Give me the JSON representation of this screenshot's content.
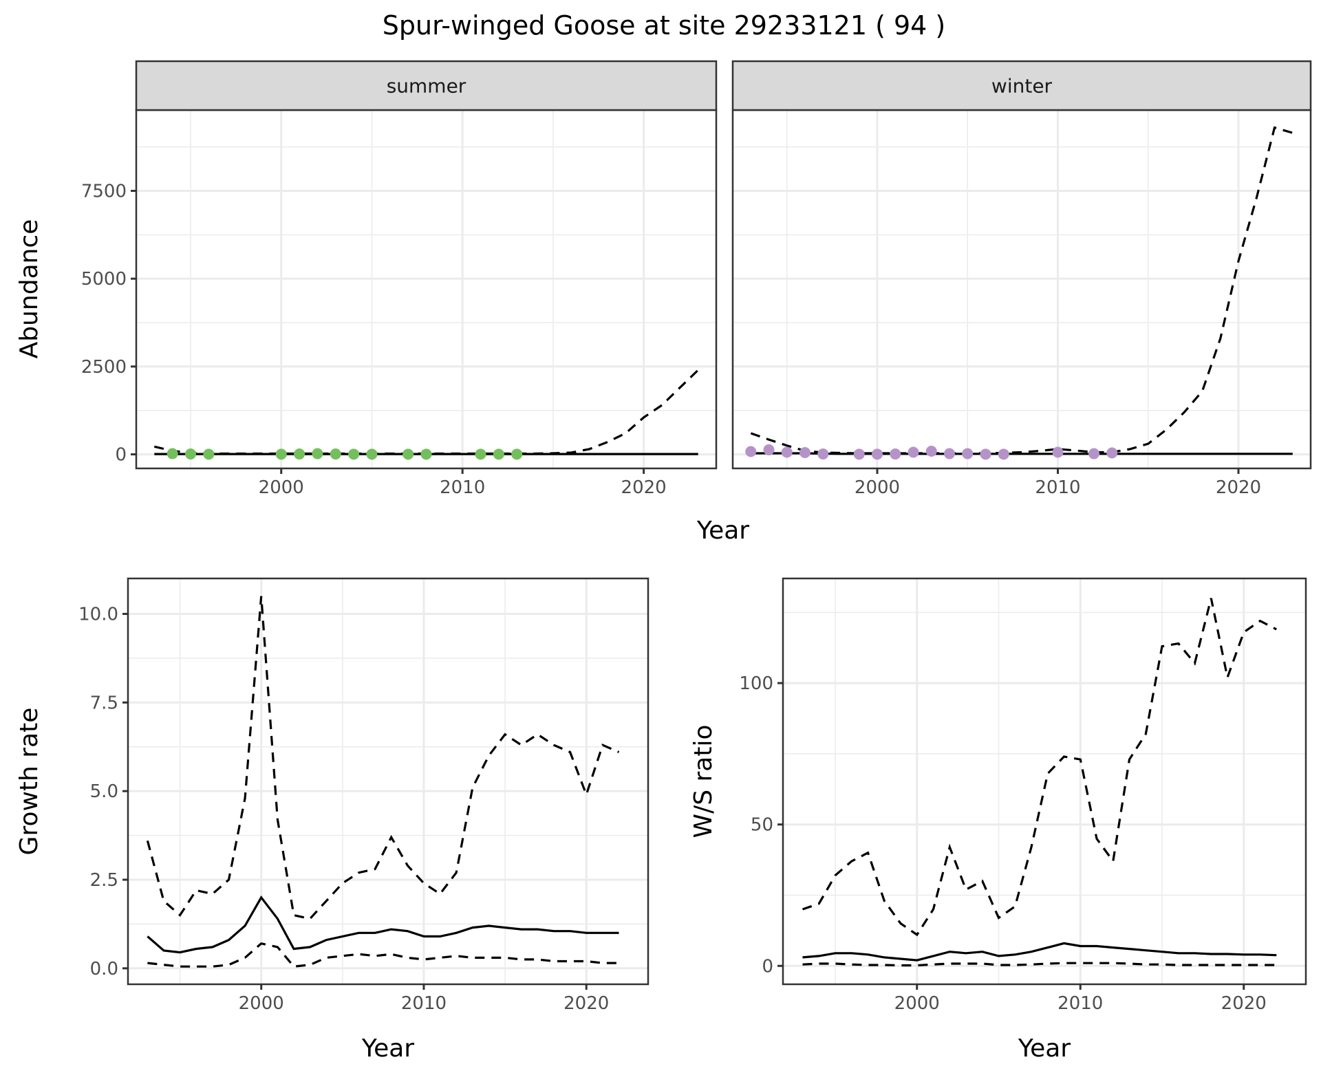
{
  "title": "Spur-winged Goose at site 29233121 ( 94 )",
  "colors": {
    "summer": "#74bf5d",
    "winter": "#b593c8",
    "strip": "#d9d9d9",
    "grid": "#ebebeb"
  },
  "chart_data": [
    {
      "type": "line",
      "panel": "summer",
      "strip_label": "summer",
      "xlabel": "Year",
      "ylabel": "Abundance",
      "xlim": [
        1992,
        2024
      ],
      "ylim": [
        -400,
        9800
      ],
      "xticks": [
        2000,
        2010,
        2020
      ],
      "yticks": [
        0,
        2500,
        5000,
        7500
      ],
      "xtick_labels": [
        "2000",
        "2010",
        "2020"
      ],
      "ytick_labels": [
        "0",
        "2500",
        "5000",
        "7500"
      ],
      "x": [
        1993,
        1994,
        1995,
        1996,
        1997,
        1998,
        1999,
        2000,
        2001,
        2002,
        2003,
        2004,
        2005,
        2006,
        2007,
        2008,
        2009,
        2010,
        2011,
        2012,
        2013,
        2014,
        2015,
        2016,
        2017,
        2018,
        2019,
        2020,
        2021,
        2022,
        2023
      ],
      "series": [
        {
          "name": "estimate",
          "style": "solid",
          "values": [
            10,
            10,
            10,
            10,
            10,
            10,
            10,
            10,
            10,
            10,
            10,
            10,
            10,
            10,
            10,
            10,
            10,
            10,
            10,
            10,
            10,
            10,
            10,
            10,
            10,
            10,
            10,
            10,
            10,
            10,
            10
          ]
        },
        {
          "name": "upper",
          "style": "dashed",
          "values": [
            220,
            100,
            40,
            20,
            20,
            20,
            20,
            20,
            20,
            20,
            20,
            20,
            20,
            20,
            20,
            20,
            20,
            20,
            20,
            20,
            20,
            20,
            30,
            50,
            150,
            350,
            600,
            1050,
            1400,
            1900,
            2400
          ]
        }
      ],
      "points": {
        "x": [
          1994,
          1995,
          1996,
          2000,
          2001,
          2002,
          2003,
          2004,
          2005,
          2007,
          2008,
          2011,
          2012,
          2013
        ],
        "y": [
          20,
          10,
          5,
          5,
          10,
          20,
          10,
          5,
          5,
          5,
          5,
          5,
          5,
          5
        ]
      }
    },
    {
      "type": "line",
      "panel": "winter",
      "strip_label": "winter",
      "xlabel": "Year",
      "ylabel": "Abundance",
      "xlim": [
        1992,
        2024
      ],
      "ylim": [
        -400,
        9800
      ],
      "xticks": [
        2000,
        2010,
        2020
      ],
      "yticks": [
        0,
        2500,
        5000,
        7500
      ],
      "xtick_labels": [
        "2000",
        "2010",
        "2020"
      ],
      "ytick_labels": [
        "0",
        "2500",
        "5000",
        "7500"
      ],
      "x": [
        1993,
        1994,
        1995,
        1996,
        1997,
        1998,
        1999,
        2000,
        2001,
        2002,
        2003,
        2004,
        2005,
        2006,
        2007,
        2008,
        2009,
        2010,
        2011,
        2012,
        2013,
        2014,
        2015,
        2016,
        2017,
        2018,
        2019,
        2020,
        2021,
        2022,
        2023
      ],
      "series": [
        {
          "name": "estimate",
          "style": "solid",
          "values": [
            30,
            30,
            30,
            30,
            20,
            15,
            15,
            15,
            15,
            15,
            15,
            15,
            15,
            15,
            15,
            15,
            15,
            15,
            15,
            15,
            15,
            15,
            15,
            15,
            15,
            15,
            15,
            15,
            15,
            15,
            15
          ]
        },
        {
          "name": "upper",
          "style": "dashed",
          "values": [
            600,
            420,
            250,
            100,
            50,
            40,
            30,
            30,
            30,
            30,
            30,
            30,
            30,
            30,
            40,
            60,
            100,
            150,
            110,
            60,
            60,
            150,
            300,
            700,
            1200,
            1800,
            3300,
            5500,
            7300,
            9300,
            9150
          ]
        }
      ],
      "points": {
        "x": [
          1993,
          1994,
          1995,
          1996,
          1997,
          1999,
          2000,
          2001,
          2002,
          2003,
          2004,
          2005,
          2006,
          2007,
          2010,
          2012,
          2013
        ],
        "y": [
          80,
          130,
          60,
          50,
          10,
          5,
          5,
          10,
          60,
          90,
          20,
          20,
          5,
          5,
          60,
          20,
          40
        ]
      }
    },
    {
      "type": "line",
      "panel": "growth",
      "xlabel": "Year",
      "ylabel": "Growth rate",
      "xlim": [
        1991.8,
        2023.8
      ],
      "ylim": [
        -0.45,
        11.0
      ],
      "xticks": [
        2000,
        2010,
        2020
      ],
      "yticks": [
        0,
        2.5,
        5,
        7.5,
        10
      ],
      "xtick_labels": [
        "2000",
        "2010",
        "2020"
      ],
      "ytick_labels": [
        "0.0",
        "2.5",
        "5.0",
        "7.5",
        "10.0"
      ],
      "x": [
        1993,
        1994,
        1995,
        1996,
        1997,
        1998,
        1999,
        2000,
        2001,
        2002,
        2003,
        2004,
        2005,
        2006,
        2007,
        2008,
        2009,
        2010,
        2011,
        2012,
        2013,
        2014,
        2015,
        2016,
        2017,
        2018,
        2019,
        2020,
        2021,
        2022
      ],
      "series": [
        {
          "name": "upper",
          "style": "dashed",
          "values": [
            3.6,
            1.9,
            1.5,
            2.2,
            2.1,
            2.5,
            4.8,
            10.5,
            4.2,
            1.5,
            1.4,
            1.9,
            2.4,
            2.7,
            2.8,
            3.7,
            2.9,
            2.4,
            2.1,
            2.7,
            5.1,
            6.0,
            6.6,
            6.3,
            6.6,
            6.3,
            6.1,
            4.9,
            6.3,
            6.1
          ]
        },
        {
          "name": "estimate",
          "style": "solid",
          "values": [
            0.9,
            0.5,
            0.45,
            0.55,
            0.6,
            0.8,
            1.2,
            2.0,
            1.4,
            0.55,
            0.6,
            0.8,
            0.9,
            1.0,
            1.0,
            1.1,
            1.05,
            0.9,
            0.9,
            1.0,
            1.15,
            1.2,
            1.15,
            1.1,
            1.1,
            1.05,
            1.05,
            1.0,
            1.0,
            1.0
          ]
        },
        {
          "name": "lower",
          "style": "dashed",
          "values": [
            0.15,
            0.1,
            0.05,
            0.05,
            0.05,
            0.1,
            0.3,
            0.7,
            0.6,
            0.05,
            0.1,
            0.3,
            0.35,
            0.4,
            0.35,
            0.4,
            0.3,
            0.25,
            0.3,
            0.35,
            0.3,
            0.3,
            0.3,
            0.25,
            0.25,
            0.2,
            0.2,
            0.2,
            0.15,
            0.15
          ]
        }
      ]
    },
    {
      "type": "line",
      "panel": "ws_ratio",
      "xlabel": "Year",
      "ylabel": "W/S ratio",
      "xlim": [
        1991.8,
        2023.8
      ],
      "ylim": [
        -6.5,
        137
      ],
      "xticks": [
        2000,
        2010,
        2020
      ],
      "yticks": [
        0,
        50,
        100
      ],
      "xtick_labels": [
        "2000",
        "2010",
        "2020"
      ],
      "ytick_labels": [
        "0",
        "50",
        "100"
      ],
      "x": [
        1993,
        1994,
        1995,
        1996,
        1997,
        1998,
        1999,
        2000,
        2001,
        2002,
        2003,
        2004,
        2005,
        2006,
        2007,
        2008,
        2009,
        2010,
        2011,
        2012,
        2013,
        2014,
        2015,
        2016,
        2017,
        2018,
        2019,
        2020,
        2021,
        2022
      ],
      "series": [
        {
          "name": "upper",
          "style": "dashed",
          "values": [
            20,
            22,
            32,
            37,
            40,
            23,
            15,
            11,
            20,
            42,
            27,
            30,
            17,
            21,
            42,
            68,
            74,
            73,
            45,
            37,
            73,
            82,
            113,
            114,
            107,
            130,
            102,
            118,
            122,
            119
          ]
        },
        {
          "name": "estimate",
          "style": "solid",
          "values": [
            3,
            3.5,
            4.5,
            4.5,
            4,
            3,
            2.5,
            2,
            3.5,
            5,
            4.5,
            5,
            3.5,
            4,
            5,
            6.5,
            8,
            7,
            7,
            6.5,
            6,
            5.5,
            5,
            4.5,
            4.5,
            4.2,
            4.2,
            4,
            4,
            3.8
          ]
        },
        {
          "name": "lower",
          "style": "dashed",
          "values": [
            0.5,
            0.8,
            0.8,
            0.5,
            0.3,
            0.3,
            0.2,
            0.2,
            0.5,
            0.8,
            0.8,
            0.8,
            0.3,
            0.3,
            0.5,
            0.8,
            1,
            1,
            1,
            1,
            0.8,
            0.5,
            0.5,
            0.3,
            0.3,
            0.3,
            0.3,
            0.3,
            0.3,
            0.3
          ]
        }
      ]
    }
  ],
  "shared_xlabel_top": "Year"
}
